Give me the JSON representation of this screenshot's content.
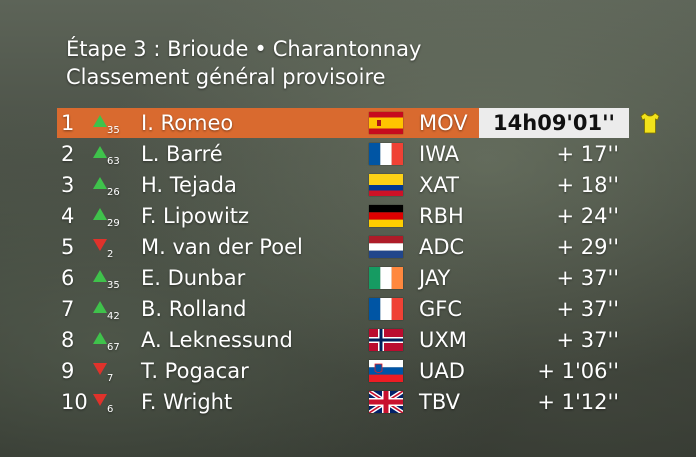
{
  "header": {
    "stage_title": "Étape 3 : Brioude",
    "separator": "•",
    "stage_finish": "Charantonnay",
    "subtitle": "Classement général provisoire"
  },
  "leader_icon": "yellow-jersey-icon",
  "rows": [
    {
      "pos": "1",
      "trend": "up",
      "change": "35",
      "rider": "I. Romeo",
      "flag": "spain",
      "team": "MOV",
      "time": "14h09'01''"
    },
    {
      "pos": "2",
      "trend": "up",
      "change": "63",
      "rider": "L. Barré",
      "flag": "france",
      "team": "IWA",
      "time": "+ 17''"
    },
    {
      "pos": "3",
      "trend": "up",
      "change": "26",
      "rider": "H. Tejada",
      "flag": "colombia",
      "team": "XAT",
      "time": "+ 18''"
    },
    {
      "pos": "4",
      "trend": "up",
      "change": "29",
      "rider": "F. Lipowitz",
      "flag": "germany",
      "team": "RBH",
      "time": "+ 24''"
    },
    {
      "pos": "5",
      "trend": "down",
      "change": "2",
      "rider": "M. van der Poel",
      "flag": "netherlands",
      "team": "ADC",
      "time": "+ 29''"
    },
    {
      "pos": "6",
      "trend": "up",
      "change": "35",
      "rider": "E. Dunbar",
      "flag": "ireland",
      "team": "JAY",
      "time": "+ 37''"
    },
    {
      "pos": "7",
      "trend": "up",
      "change": "42",
      "rider": "B. Rolland",
      "flag": "france",
      "team": "GFC",
      "time": "+ 37''"
    },
    {
      "pos": "8",
      "trend": "up",
      "change": "67",
      "rider": "A. Leknessund",
      "flag": "norway",
      "team": "UXM",
      "time": "+ 37''"
    },
    {
      "pos": "9",
      "trend": "down",
      "change": "7",
      "rider": "T. Pogacar",
      "flag": "slovenia",
      "team": "UAD",
      "time": "+ 1'06''"
    },
    {
      "pos": "10",
      "trend": "down",
      "change": "6",
      "rider": "F. Wright",
      "flag": "united-kingdom",
      "team": "TBV",
      "time": "+ 1'12''"
    }
  ],
  "colors": {
    "leader_row": "#d96a2f",
    "time_box": "#ececec",
    "up_arrow": "#3fc24b",
    "down_arrow": "#e0322b",
    "jersey": "#f2e21b"
  }
}
